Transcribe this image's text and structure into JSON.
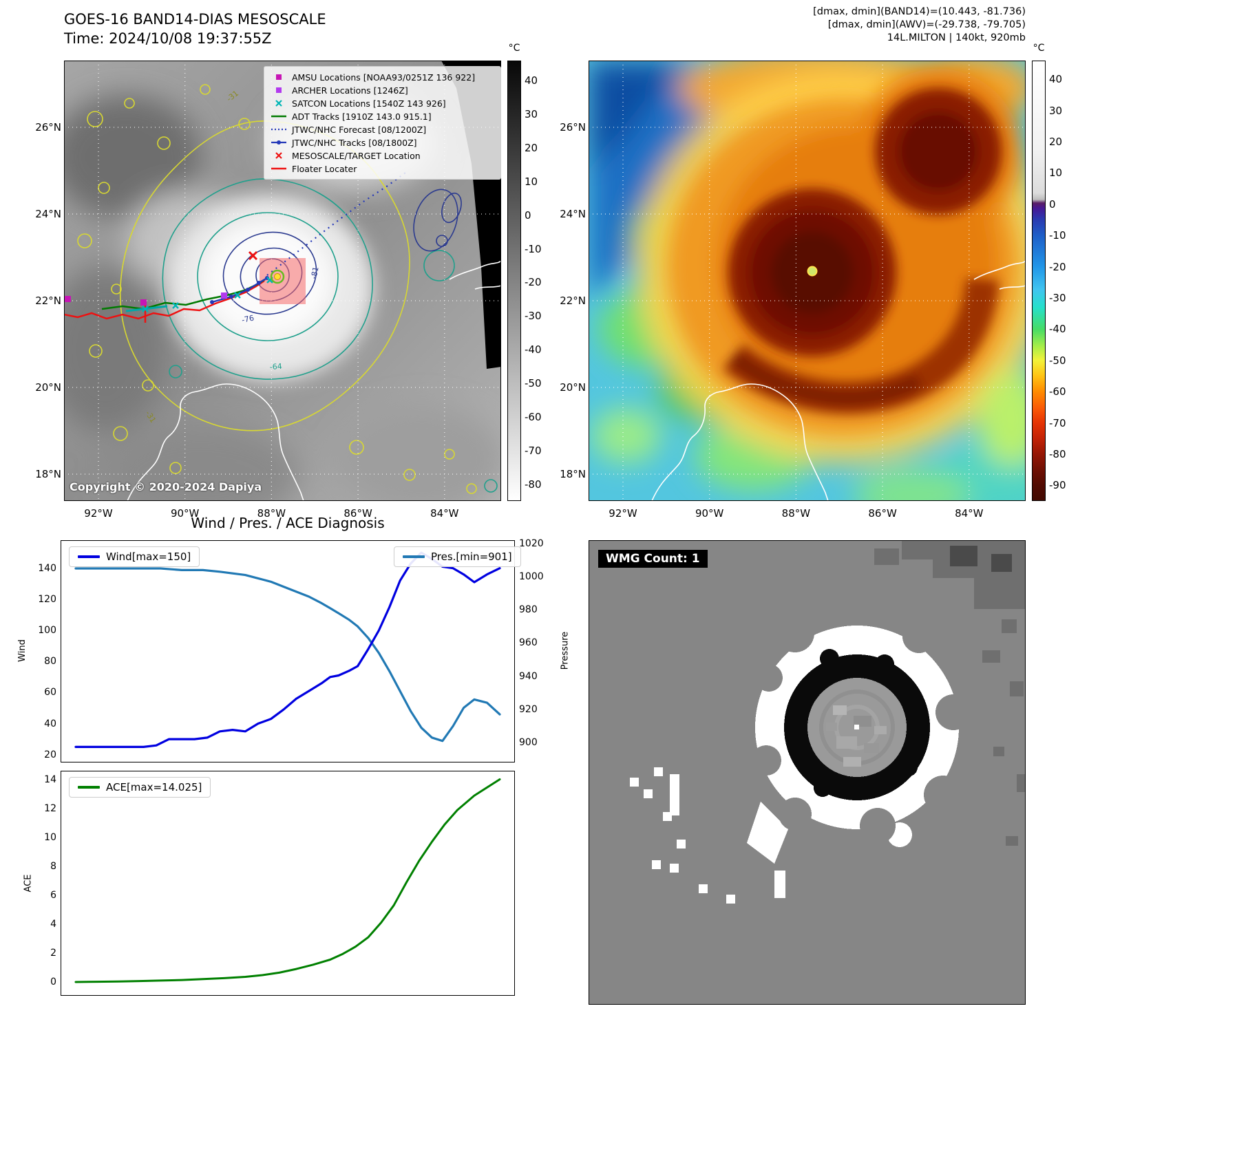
{
  "panel_tl": {
    "title": "GOES-16 BAND14-DIAS MESOSCALE",
    "time": "Time: 2024/10/08 19:37:55Z",
    "copyright": "Copyright © 2020-2024 Dapiya",
    "colorbar": {
      "unit": "°C",
      "ticks": [
        40,
        30,
        20,
        10,
        0,
        -10,
        -20,
        -30,
        -40,
        -50,
        -60,
        -70,
        -80
      ]
    },
    "x_ticks": [
      "92°W",
      "90°W",
      "88°W",
      "86°W",
      "84°W"
    ],
    "y_ticks": [
      "26°N",
      "24°N",
      "22°N",
      "20°N",
      "18°N"
    ],
    "contour_labels": [
      "-31",
      "-81",
      "-76",
      "-64",
      "-31"
    ],
    "legend": [
      {
        "label": "AMSU Locations [NOAA93/0251Z 136 922]",
        "marker": "square",
        "color": "#c715b5"
      },
      {
        "label": "ARCHER Locations [1246Z]",
        "marker": "square",
        "color": "#b23aee"
      },
      {
        "label": "SATCON Locations [1540Z 143 926]",
        "marker": "x",
        "color": "#00b5b5"
      },
      {
        "label": "ADT Tracks [1910Z 143.0 915.1]",
        "marker": "line",
        "color": "#007a00"
      },
      {
        "label": "JTWC/NHC Forecast [08/1200Z]",
        "marker": "dotted",
        "color": "#2438b8"
      },
      {
        "label": "JTWC/NHC Tracks [08/1800Z]",
        "marker": "linedot",
        "color": "#2438b8"
      },
      {
        "label": "MESOSCALE/TARGET Location",
        "marker": "x",
        "color": "#ee1111"
      },
      {
        "label": "Floater Locater",
        "marker": "line",
        "color": "#ee1111"
      }
    ]
  },
  "panel_tr": {
    "header1": "[dmax, dmin](BAND14)=(10.443, -81.736)",
    "header2": "[dmax, dmin](AWV)=(-29.738, -79.705)",
    "header3": "14L.MILTON | 140kt, 920mb",
    "colorbar": {
      "unit": "°C",
      "ticks": [
        40,
        30,
        20,
        10,
        0,
        -10,
        -20,
        -30,
        -40,
        -50,
        -60,
        -70,
        -80,
        -90
      ]
    },
    "x_ticks": [
      "92°W",
      "90°W",
      "88°W",
      "86°W",
      "84°W"
    ],
    "y_ticks": [
      "26°N",
      "24°N",
      "22°N",
      "20°N",
      "18°N"
    ]
  },
  "panel_bl": {
    "title": "Wind / Pres. / ACE Diagnosis"
  },
  "panel_br": {
    "label": "WMG Count: 1"
  },
  "chart_data": [
    {
      "type": "line",
      "title": "Wind / Pres. / ACE Diagnosis",
      "x_axis": "time (normalized 0-1, no x tick labels shown)",
      "grid": false,
      "series": [
        {
          "name": "Wind[max=150]",
          "ylabel": "Wind",
          "color": "#0000e0",
          "axis": "left",
          "ylim": [
            15,
            158
          ],
          "yticks": [
            20,
            40,
            60,
            80,
            100,
            120,
            140
          ],
          "points": [
            [
              0,
              25
            ],
            [
              0.04,
              25
            ],
            [
              0.08,
              25
            ],
            [
              0.12,
              25
            ],
            [
              0.16,
              25
            ],
            [
              0.19,
              26
            ],
            [
              0.22,
              30
            ],
            [
              0.25,
              30
            ],
            [
              0.28,
              30
            ],
            [
              0.31,
              31
            ],
            [
              0.34,
              35
            ],
            [
              0.37,
              36
            ],
            [
              0.4,
              35
            ],
            [
              0.43,
              40
            ],
            [
              0.46,
              43
            ],
            [
              0.49,
              49
            ],
            [
              0.52,
              56
            ],
            [
              0.55,
              61
            ],
            [
              0.58,
              66
            ],
            [
              0.6,
              70
            ],
            [
              0.62,
              71
            ],
            [
              0.645,
              74
            ],
            [
              0.665,
              77
            ],
            [
              0.69,
              88
            ],
            [
              0.715,
              100
            ],
            [
              0.74,
              115
            ],
            [
              0.765,
              132
            ],
            [
              0.79,
              143
            ],
            [
              0.815,
              150
            ],
            [
              0.84,
              146
            ],
            [
              0.865,
              141
            ],
            [
              0.89,
              140
            ],
            [
              0.915,
              136
            ],
            [
              0.94,
              131
            ],
            [
              0.97,
              136
            ],
            [
              1,
              140
            ]
          ]
        },
        {
          "name": "Pres.[min=901]",
          "ylabel": "Pressure",
          "color": "#2179b4",
          "axis": "right",
          "ylim": [
            888,
            1022
          ],
          "yticks": [
            900,
            920,
            940,
            960,
            980,
            1000,
            1020
          ],
          "points": [
            [
              0,
              1005
            ],
            [
              0.05,
              1005
            ],
            [
              0.1,
              1005
            ],
            [
              0.15,
              1005
            ],
            [
              0.2,
              1005
            ],
            [
              0.25,
              1004
            ],
            [
              0.3,
              1004
            ],
            [
              0.34,
              1003
            ],
            [
              0.37,
              1002
            ],
            [
              0.4,
              1001
            ],
            [
              0.43,
              999
            ],
            [
              0.46,
              997
            ],
            [
              0.49,
              994
            ],
            [
              0.52,
              991
            ],
            [
              0.55,
              988
            ],
            [
              0.58,
              984
            ],
            [
              0.6,
              981
            ],
            [
              0.62,
              978
            ],
            [
              0.645,
              974
            ],
            [
              0.665,
              970
            ],
            [
              0.69,
              963
            ],
            [
              0.715,
              954
            ],
            [
              0.74,
              943
            ],
            [
              0.765,
              931
            ],
            [
              0.79,
              919
            ],
            [
              0.815,
              909
            ],
            [
              0.84,
              903
            ],
            [
              0.865,
              901
            ],
            [
              0.89,
              910
            ],
            [
              0.915,
              921
            ],
            [
              0.94,
              926
            ],
            [
              0.97,
              924
            ],
            [
              1,
              917
            ]
          ]
        }
      ]
    },
    {
      "type": "line",
      "grid": false,
      "series": [
        {
          "name": "ACE[max=14.025]",
          "ylabel": "ACE",
          "color": "#008000",
          "axis": "left",
          "ylim": [
            -0.95,
            14.62
          ],
          "yticks": [
            0,
            2,
            4,
            6,
            8,
            10,
            12,
            14
          ],
          "points": [
            [
              0,
              0
            ],
            [
              0.05,
              0.02
            ],
            [
              0.1,
              0.04
            ],
            [
              0.15,
              0.07
            ],
            [
              0.2,
              0.1
            ],
            [
              0.25,
              0.14
            ],
            [
              0.3,
              0.2
            ],
            [
              0.35,
              0.27
            ],
            [
              0.4,
              0.36
            ],
            [
              0.44,
              0.48
            ],
            [
              0.48,
              0.65
            ],
            [
              0.52,
              0.9
            ],
            [
              0.56,
              1.2
            ],
            [
              0.6,
              1.55
            ],
            [
              0.63,
              1.95
            ],
            [
              0.66,
              2.45
            ],
            [
              0.69,
              3.1
            ],
            [
              0.72,
              4.1
            ],
            [
              0.75,
              5.3
            ],
            [
              0.78,
              6.9
            ],
            [
              0.81,
              8.4
            ],
            [
              0.84,
              9.7
            ],
            [
              0.87,
              10.9
            ],
            [
              0.9,
              11.9
            ],
            [
              0.94,
              12.9
            ],
            [
              1,
              14.025
            ]
          ]
        }
      ]
    }
  ]
}
